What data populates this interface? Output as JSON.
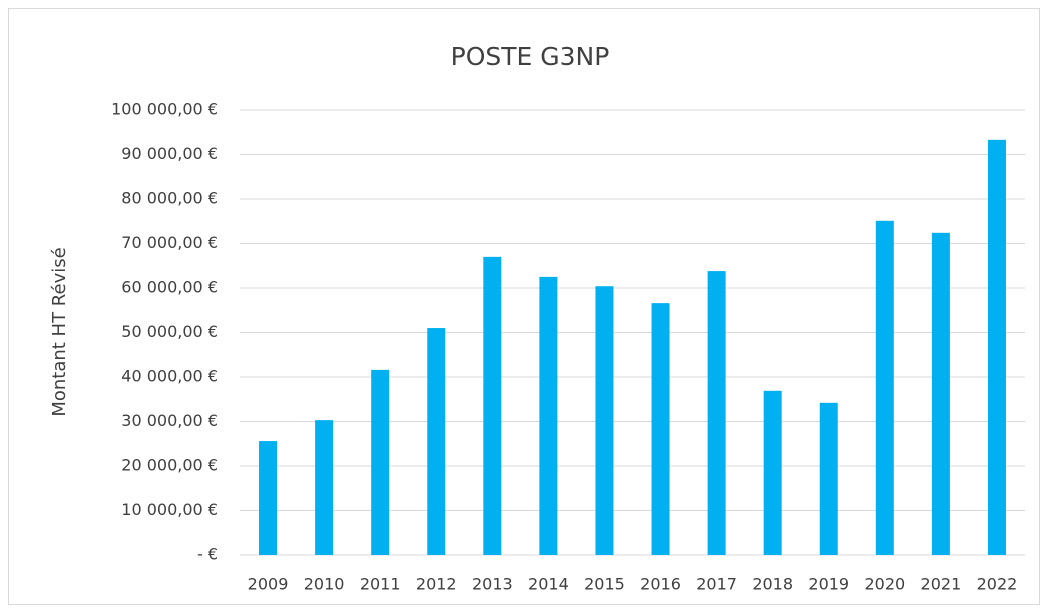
{
  "chart_data": {
    "type": "bar",
    "title": "POSTE G3NP",
    "y_label": "Montant HT Révisé",
    "categories": [
      "2009",
      "2010",
      "2011",
      "2012",
      "2013",
      "2014",
      "2015",
      "2016",
      "2017",
      "2018",
      "2019",
      "2020",
      "2021",
      "2022"
    ],
    "values": [
      25600,
      30300,
      41600,
      51000,
      67000,
      62500,
      60400,
      56600,
      63800,
      36900,
      34200,
      75100,
      72400,
      93300
    ],
    "color": "#00b0f0",
    "ylim": [
      0,
      100000
    ],
    "yticks": [
      {
        "value": 0,
        "label": "-  €"
      },
      {
        "value": 10000,
        "label": "10 000,00 €"
      },
      {
        "value": 20000,
        "label": "20 000,00 €"
      },
      {
        "value": 30000,
        "label": "30 000,00 €"
      },
      {
        "value": 40000,
        "label": "40 000,00 €"
      },
      {
        "value": 50000,
        "label": "50 000,00 €"
      },
      {
        "value": 60000,
        "label": "60 000,00 €"
      },
      {
        "value": 70000,
        "label": "70 000,00 €"
      },
      {
        "value": 80000,
        "label": "80 000,00 €"
      },
      {
        "value": 90000,
        "label": "90 000,00 €"
      },
      {
        "value": 100000,
        "label": "100 000,00 €"
      }
    ],
    "grid": true
  }
}
